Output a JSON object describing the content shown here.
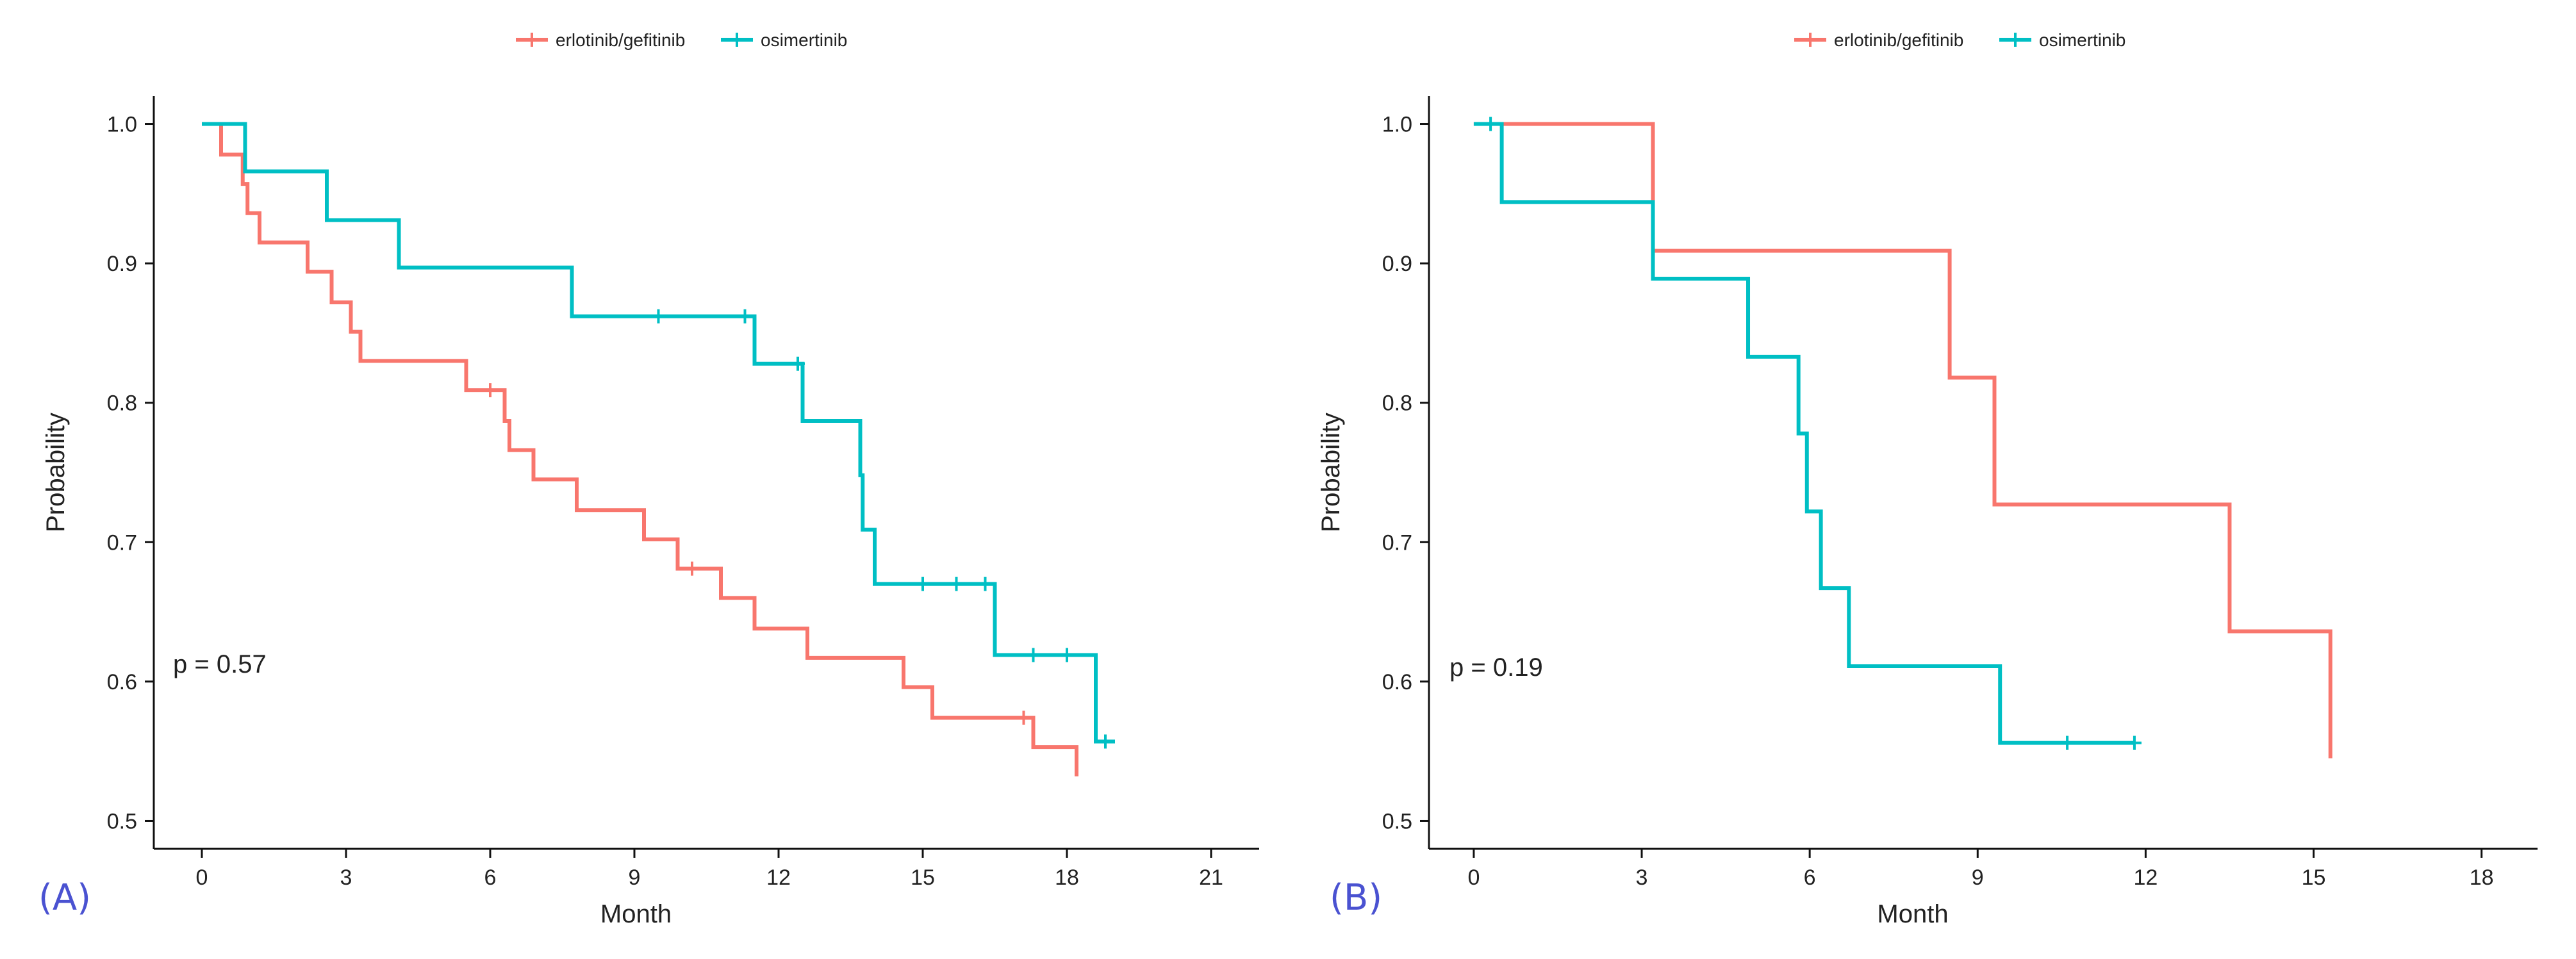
{
  "chart_data": [
    {
      "type": "line",
      "panel_label": "(A)",
      "xlabel": "Month",
      "ylabel": "Probability",
      "xlim": [
        -1,
        22
      ],
      "ylim": [
        0.48,
        1.02
      ],
      "xticks": [
        0,
        3,
        6,
        9,
        12,
        15,
        18,
        21
      ],
      "yticks": [
        0.5,
        0.6,
        0.7,
        0.8,
        0.9,
        1.0
      ],
      "annotation": "p = 0.57",
      "grid": false,
      "legend": "top",
      "series": [
        {
          "name": "erlotinib/gefitinib",
          "color": "#F8766D",
          "steps": [
            [
              0,
              1.0
            ],
            [
              0.4,
              0.978
            ],
            [
              0.85,
              0.957
            ],
            [
              0.95,
              0.936
            ],
            [
              1.2,
              0.915
            ],
            [
              2.2,
              0.894
            ],
            [
              2.7,
              0.872
            ],
            [
              3.1,
              0.851
            ],
            [
              3.3,
              0.83
            ],
            [
              5.5,
              0.809
            ],
            [
              6.3,
              0.787
            ],
            [
              6.4,
              0.766
            ],
            [
              6.9,
              0.745
            ],
            [
              7.8,
              0.723
            ],
            [
              9.2,
              0.702
            ],
            [
              9.9,
              0.681
            ],
            [
              10.8,
              0.66
            ],
            [
              11.5,
              0.638
            ],
            [
              12.6,
              0.617
            ],
            [
              14.6,
              0.596
            ],
            [
              15.2,
              0.574
            ],
            [
              17.3,
              0.553
            ],
            [
              18.2,
              0.532
            ],
            [
              18.2,
              0.532
            ]
          ],
          "censored": [
            [
              6.0,
              0.809
            ],
            [
              10.2,
              0.681
            ],
            [
              17.1,
              0.574
            ]
          ]
        },
        {
          "name": "osimertinib",
          "color": "#00BFC4",
          "steps": [
            [
              0,
              1.0
            ],
            [
              0.9,
              0.966
            ],
            [
              2.6,
              0.931
            ],
            [
              4.1,
              0.897
            ],
            [
              7.7,
              0.862
            ],
            [
              11.5,
              0.828
            ],
            [
              12.5,
              0.787
            ],
            [
              13.7,
              0.748
            ],
            [
              13.75,
              0.709
            ],
            [
              14.0,
              0.67
            ],
            [
              16.5,
              0.619
            ],
            [
              18.6,
              0.557
            ],
            [
              19.0,
              0.557
            ]
          ],
          "censored": [
            [
              9.5,
              0.862
            ],
            [
              11.3,
              0.862
            ],
            [
              12.4,
              0.828
            ],
            [
              15.0,
              0.67
            ],
            [
              15.7,
              0.67
            ],
            [
              16.3,
              0.67
            ],
            [
              17.3,
              0.619
            ],
            [
              18.0,
              0.619
            ],
            [
              18.8,
              0.557
            ]
          ]
        }
      ]
    },
    {
      "type": "line",
      "panel_label": "(B)",
      "xlabel": "Month",
      "ylabel": "Probability",
      "xlim": [
        -0.8,
        19
      ],
      "ylim": [
        0.48,
        1.02
      ],
      "xticks": [
        0,
        3,
        6,
        9,
        12,
        15,
        18
      ],
      "yticks": [
        0.5,
        0.6,
        0.7,
        0.8,
        0.9,
        1.0
      ],
      "annotation": "p = 0.19",
      "grid": false,
      "legend": "top",
      "series": [
        {
          "name": "erlotinib/gefitinib",
          "color": "#F8766D",
          "steps": [
            [
              0,
              1.0
            ],
            [
              3.2,
              0.909
            ],
            [
              8.5,
              0.818
            ],
            [
              9.3,
              0.727
            ],
            [
              13.5,
              0.636
            ],
            [
              15.3,
              0.545
            ]
          ],
          "censored": []
        },
        {
          "name": "osimertinib",
          "color": "#00BFC4",
          "steps": [
            [
              0,
              1.0
            ],
            [
              0.5,
              0.944
            ],
            [
              3.2,
              0.889
            ],
            [
              4.9,
              0.833
            ],
            [
              5.8,
              0.778
            ],
            [
              5.95,
              0.722
            ],
            [
              6.2,
              0.667
            ],
            [
              6.7,
              0.611
            ],
            [
              9.4,
              0.556
            ],
            [
              11.8,
              0.556
            ]
          ],
          "censored": [
            [
              0.3,
              1.0
            ],
            [
              10.6,
              0.556
            ],
            [
              11.8,
              0.556
            ]
          ]
        }
      ]
    }
  ]
}
